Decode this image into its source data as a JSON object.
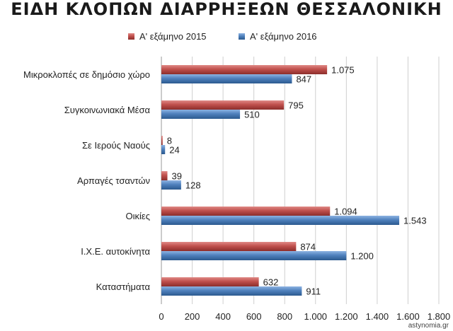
{
  "chart_data": {
    "type": "bar",
    "orientation": "horizontal",
    "title": "ΕΙΔΗ ΚΛΟΠΩΝ ΔΙΑΡΡΗΞΕΩΝ ΘΕΣΣΑΛΟΝΙΚΗ",
    "categories": [
      "Μικροκλοπές σε δημόσιο χώρο",
      "Συγκοινωνιακά Μέσα",
      "Σε Ιερούς Ναούς",
      "Αρπαγές τσαντών",
      "Οικίες",
      "Ι.Χ.Ε. αυτοκίνητα",
      "Καταστήματα"
    ],
    "series": [
      {
        "name": "Α' εξάμηνο 2015",
        "color": "#c0504d",
        "values": [
          1075,
          795,
          8,
          39,
          1094,
          874,
          632
        ],
        "labels": [
          "1.075",
          "795",
          "8",
          "39",
          "1.094",
          "874",
          "632"
        ]
      },
      {
        "name": "Α' εξάμηνο 2016",
        "color": "#4f81bd",
        "values": [
          847,
          510,
          24,
          128,
          1543,
          1200,
          911
        ],
        "labels": [
          "847",
          "510",
          "24",
          "128",
          "1.543",
          "1.200",
          "911"
        ]
      }
    ],
    "xlim": [
      0,
      1800
    ],
    "xticks": [
      0,
      200,
      400,
      600,
      800,
      1000,
      1200,
      1400,
      1600,
      1800
    ],
    "xtick_labels": [
      "0",
      "200",
      "400",
      "600",
      "800",
      "1.000",
      "1.200",
      "1.400",
      "1.600",
      "1.800"
    ],
    "grid": true,
    "legend_position": "top"
  },
  "watermark": "astynomia.gr"
}
